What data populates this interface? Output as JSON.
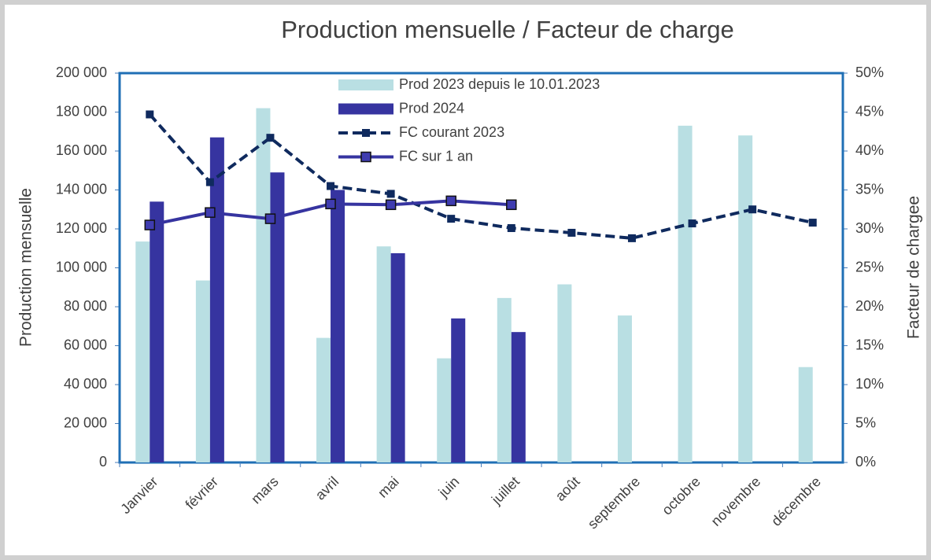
{
  "chart_data": {
    "type": "bar",
    "title": "Production mensuelle / Facteur de charge",
    "y_label": "Production mensuelle",
    "y2_label": "Facteur de chargee",
    "categories": [
      "Janvier",
      "février",
      "mars",
      "avril",
      "mai",
      "juin",
      "juillet",
      "août",
      "septembre",
      "octobre",
      "novembre",
      "décembre"
    ],
    "series": [
      {
        "name": "Prod 2023 depuis le 10.01.2023",
        "type": "bar",
        "color": "#b9dfe3",
        "values": [
          113500,
          93500,
          182000,
          64000,
          111000,
          53500,
          84500,
          91500,
          75500,
          173000,
          168000,
          49000
        ]
      },
      {
        "name": "Prod 2024",
        "type": "bar",
        "color": "#3634a0",
        "values": [
          134000,
          167000,
          149000,
          140000,
          107500,
          74000,
          67000,
          null,
          null,
          null,
          null,
          null
        ]
      },
      {
        "name": "FC courant 2023",
        "type": "line",
        "axis": "y2",
        "color": "#0f2a5e",
        "dash": true,
        "marker": "square",
        "values": [
          44.7,
          36.0,
          41.7,
          35.5,
          34.5,
          31.3,
          30.1,
          29.5,
          28.8,
          30.7,
          32.5,
          30.8
        ]
      },
      {
        "name": "FC sur 1 an",
        "type": "line",
        "axis": "y2",
        "color": "#3634a0",
        "dash": false,
        "marker": "square",
        "values": [
          30.5,
          32.1,
          31.3,
          33.2,
          33.1,
          33.6,
          33.1,
          null,
          null,
          null,
          null,
          null
        ]
      }
    ],
    "ylim": [
      0,
      200000
    ],
    "yticks": [
      0,
      {
        "value": 20000,
        "label": "20 000"
      },
      {
        "value": 40000,
        "label": "40 000"
      },
      {
        "value": 60000,
        "label": "60 000"
      },
      {
        "value": 80000,
        "label": "80 000"
      },
      {
        "value": 100000,
        "label": "100 000"
      },
      {
        "value": 120000,
        "label": "120 000"
      },
      {
        "value": 140000,
        "label": "140 000"
      },
      {
        "value": 160000,
        "label": "160 000"
      },
      {
        "value": 180000,
        "label": "180 000"
      },
      {
        "value": 200000,
        "label": "200 000"
      }
    ],
    "y2lim": [
      0,
      50
    ],
    "y2ticks": [
      {
        "value": 0,
        "label": "0%"
      },
      {
        "value": 5,
        "label": "5%"
      },
      {
        "value": 10,
        "label": "10%"
      },
      {
        "value": 15,
        "label": "15%"
      },
      {
        "value": 20,
        "label": "20%"
      },
      {
        "value": 25,
        "label": "25%"
      },
      {
        "value": 30,
        "label": "30%"
      },
      {
        "value": 35,
        "label": "35%"
      },
      {
        "value": 40,
        "label": "40%"
      },
      {
        "value": 45,
        "label": "45%"
      },
      {
        "value": 50,
        "label": "50%"
      }
    ],
    "legend": "top"
  }
}
